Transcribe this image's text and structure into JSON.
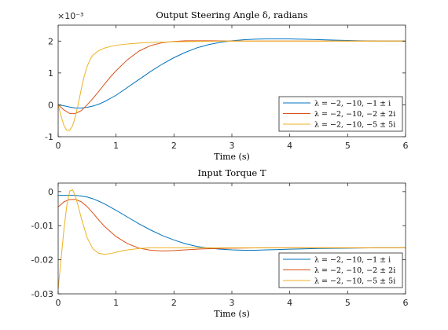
{
  "chart_data": [
    {
      "type": "line",
      "title": "Output Steering Angle δ, radians",
      "xlabel": "Time (s)",
      "ylabel": "",
      "exponent_label": "×10⁻³",
      "xlim": [
        0,
        6
      ],
      "ylim": [
        -1,
        2.5
      ],
      "xticks": [
        0,
        1,
        2,
        3,
        4,
        5,
        6
      ],
      "yticks": [
        -1,
        0,
        1,
        2
      ],
      "grid": false,
      "legend_position": "bottom-right",
      "series": [
        {
          "name": "λ = −2, −10, −1 ± i",
          "color": "#0072BD",
          "x": [
            0,
            0.1,
            0.2,
            0.3,
            0.4,
            0.5,
            0.6,
            0.7,
            0.8,
            1.0,
            1.2,
            1.4,
            1.6,
            1.8,
            2.0,
            2.2,
            2.4,
            2.6,
            2.8,
            3.0,
            3.2,
            3.4,
            3.6,
            3.8,
            4.0,
            4.4,
            4.8,
            5.2,
            5.6,
            6.0
          ],
          "y": [
            0,
            -0.03,
            -0.07,
            -0.1,
            -0.1,
            -0.08,
            -0.04,
            0.02,
            0.1,
            0.3,
            0.55,
            0.8,
            1.05,
            1.28,
            1.48,
            1.65,
            1.79,
            1.89,
            1.96,
            2.01,
            2.04,
            2.06,
            2.07,
            2.07,
            2.07,
            2.05,
            2.03,
            2.01,
            2.0,
            2.0
          ]
        },
        {
          "name": "λ = −2, −10, −2 ± 2i",
          "color": "#D95319",
          "x": [
            0,
            0.1,
            0.2,
            0.3,
            0.4,
            0.5,
            0.6,
            0.7,
            0.8,
            0.9,
            1.0,
            1.2,
            1.4,
            1.6,
            1.8,
            2.0,
            2.2,
            2.4,
            2.6,
            3.0,
            3.5,
            4.0,
            5.0,
            6.0
          ],
          "y": [
            0,
            -0.16,
            -0.27,
            -0.27,
            -0.18,
            0.0,
            0.2,
            0.42,
            0.65,
            0.87,
            1.07,
            1.42,
            1.69,
            1.86,
            1.95,
            1.99,
            2.01,
            2.01,
            2.01,
            2.0,
            2.0,
            2.0,
            2.0,
            2.0
          ]
        },
        {
          "name": "λ = −2, −10, −5 ± 5i",
          "color": "#EDB120",
          "x": [
            0,
            0.05,
            0.1,
            0.15,
            0.2,
            0.25,
            0.3,
            0.35,
            0.4,
            0.45,
            0.5,
            0.55,
            0.6,
            0.7,
            0.8,
            0.9,
            1.0,
            1.2,
            1.5,
            2.0,
            2.5,
            3.0,
            4.0,
            5.0,
            6.0
          ],
          "y": [
            0,
            -0.35,
            -0.65,
            -0.8,
            -0.8,
            -0.65,
            -0.35,
            0.05,
            0.5,
            0.9,
            1.2,
            1.42,
            1.56,
            1.7,
            1.78,
            1.83,
            1.87,
            1.91,
            1.95,
            1.98,
            1.99,
            2.0,
            2.0,
            2.0,
            2.0
          ]
        }
      ]
    },
    {
      "type": "line",
      "title": "Input Torque T",
      "xlabel": "Time (s)",
      "ylabel": "",
      "xlim": [
        0,
        6
      ],
      "ylim": [
        -0.03,
        0.0025
      ],
      "xticks": [
        0,
        1,
        2,
        3,
        4,
        5,
        6
      ],
      "yticks": [
        -0.03,
        -0.02,
        -0.01,
        0
      ],
      "grid": false,
      "legend_position": "bottom-right",
      "series": [
        {
          "name": "λ = −2, −10, −1 ± i",
          "color": "#0072BD",
          "x": [
            0,
            0.1,
            0.2,
            0.3,
            0.4,
            0.5,
            0.6,
            0.7,
            0.8,
            1.0,
            1.2,
            1.4,
            1.6,
            1.8,
            2.0,
            2.2,
            2.4,
            2.6,
            2.8,
            3.0,
            3.2,
            3.4,
            3.6,
            3.8,
            4.0,
            4.5,
            5.0,
            5.5,
            6.0
          ],
          "y": [
            -0.0011,
            -0.0011,
            -0.0011,
            -0.0011,
            -0.0013,
            -0.0016,
            -0.0021,
            -0.0028,
            -0.0036,
            -0.0055,
            -0.0075,
            -0.0095,
            -0.0113,
            -0.0129,
            -0.0142,
            -0.0153,
            -0.0161,
            -0.0166,
            -0.0169,
            -0.0171,
            -0.0172,
            -0.0172,
            -0.0171,
            -0.017,
            -0.0169,
            -0.0167,
            -0.0166,
            -0.0165,
            -0.0165
          ]
        },
        {
          "name": "λ = −2, −10, −2 ± 2i",
          "color": "#D95319",
          "x": [
            0,
            0.1,
            0.2,
            0.3,
            0.4,
            0.5,
            0.6,
            0.7,
            0.8,
            1.0,
            1.2,
            1.4,
            1.6,
            1.8,
            2.0,
            2.2,
            2.5,
            3.0,
            3.5,
            4.0,
            5.0,
            6.0
          ],
          "y": [
            -0.0045,
            -0.003,
            -0.0023,
            -0.0023,
            -0.003,
            -0.0044,
            -0.0063,
            -0.0083,
            -0.0102,
            -0.0132,
            -0.0153,
            -0.0166,
            -0.0172,
            -0.0174,
            -0.0173,
            -0.0171,
            -0.0168,
            -0.0166,
            -0.0165,
            -0.0165,
            -0.0165,
            -0.0165
          ]
        },
        {
          "name": "λ = −2, −10, −5 ± 5i",
          "color": "#EDB120",
          "x": [
            0,
            0.05,
            0.1,
            0.15,
            0.2,
            0.25,
            0.3,
            0.35,
            0.4,
            0.5,
            0.6,
            0.7,
            0.8,
            0.9,
            1.0,
            1.1,
            1.2,
            1.4,
            1.6,
            1.8,
            2.0,
            2.5,
            3.0,
            4.0,
            6.0
          ],
          "y": [
            -0.0285,
            -0.02,
            -0.011,
            -0.004,
            0.0002,
            0.0005,
            -0.0015,
            -0.0045,
            -0.0078,
            -0.0135,
            -0.0168,
            -0.0181,
            -0.0184,
            -0.0182,
            -0.0178,
            -0.0174,
            -0.0171,
            -0.0167,
            -0.0165,
            -0.0165,
            -0.0165,
            -0.0165,
            -0.0165,
            -0.0165,
            -0.0165
          ]
        }
      ]
    }
  ]
}
